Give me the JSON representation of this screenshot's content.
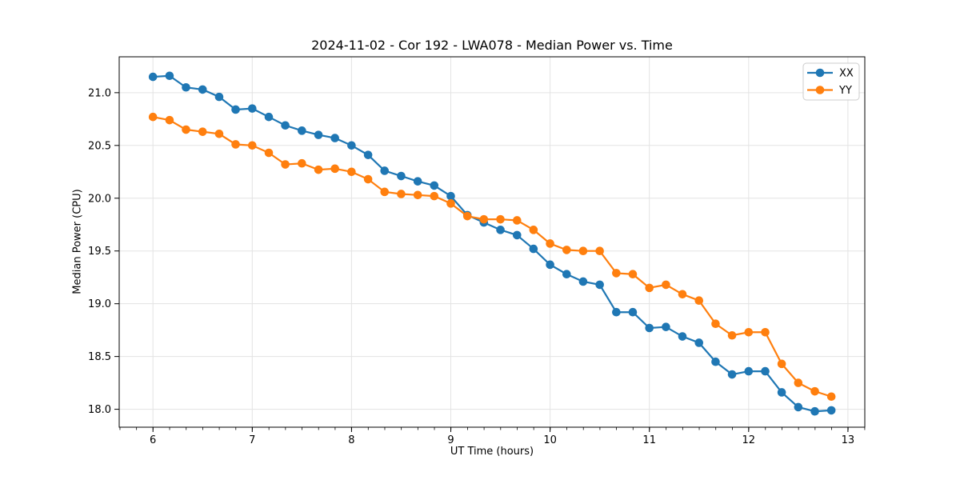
{
  "page": {
    "background": "#ffffff"
  },
  "chart_data": {
    "type": "line",
    "title": "2024-11-02 - Cor 192 - LWA078 - Median Power vs. Time",
    "xlabel": "UT Time (hours)",
    "ylabel": "Median Power (CPU)",
    "xlim": [
      5.66,
      13.17
    ],
    "ylim": [
      17.83,
      21.34
    ],
    "x_ticks": [
      6,
      7,
      8,
      9,
      10,
      11,
      12,
      13
    ],
    "y_ticks": [
      18.0,
      18.5,
      19.0,
      19.5,
      20.0,
      20.5,
      21.0
    ],
    "x_minor_step": 0.1667,
    "grid": true,
    "grid_color": "#e3e3e3",
    "spine_color": "#000000",
    "legend_position": "upper right",
    "legend_labels": [
      "XX",
      "YY"
    ],
    "x": [
      6.0,
      6.167,
      6.333,
      6.5,
      6.667,
      6.833,
      7.0,
      7.167,
      7.333,
      7.5,
      7.667,
      7.833,
      8.0,
      8.167,
      8.333,
      8.5,
      8.667,
      8.833,
      9.0,
      9.167,
      9.333,
      9.5,
      9.667,
      9.833,
      10.0,
      10.167,
      10.333,
      10.5,
      10.667,
      10.833,
      11.0,
      11.167,
      11.333,
      11.5,
      11.667,
      11.833,
      12.0,
      12.167,
      12.333,
      12.5,
      12.667,
      12.833
    ],
    "series": [
      {
        "name": "XX",
        "color": "#1f77b4",
        "marker": "circle",
        "values": [
          21.15,
          21.16,
          21.05,
          21.03,
          20.96,
          20.84,
          20.85,
          20.77,
          20.69,
          20.64,
          20.6,
          20.57,
          20.5,
          20.41,
          20.26,
          20.21,
          20.16,
          20.12,
          20.02,
          19.84,
          19.77,
          19.7,
          19.65,
          19.52,
          19.37,
          19.28,
          19.21,
          19.18,
          18.92,
          18.92,
          18.77,
          18.78,
          18.69,
          18.63,
          18.45,
          18.33,
          18.36,
          18.36,
          18.16,
          18.02,
          17.98,
          17.99
        ]
      },
      {
        "name": "YY",
        "color": "#ff7f0e",
        "marker": "circle",
        "values": [
          20.77,
          20.74,
          20.65,
          20.63,
          20.61,
          20.51,
          20.5,
          20.43,
          20.32,
          20.33,
          20.27,
          20.28,
          20.25,
          20.18,
          20.06,
          20.04,
          20.03,
          20.02,
          19.95,
          19.83,
          19.8,
          19.8,
          19.79,
          19.7,
          19.57,
          19.51,
          19.5,
          19.5,
          19.29,
          19.28,
          19.15,
          19.18,
          19.09,
          19.03,
          18.81,
          18.7,
          18.73,
          18.73,
          18.43,
          18.25,
          18.17,
          18.12
        ]
      }
    ]
  }
}
